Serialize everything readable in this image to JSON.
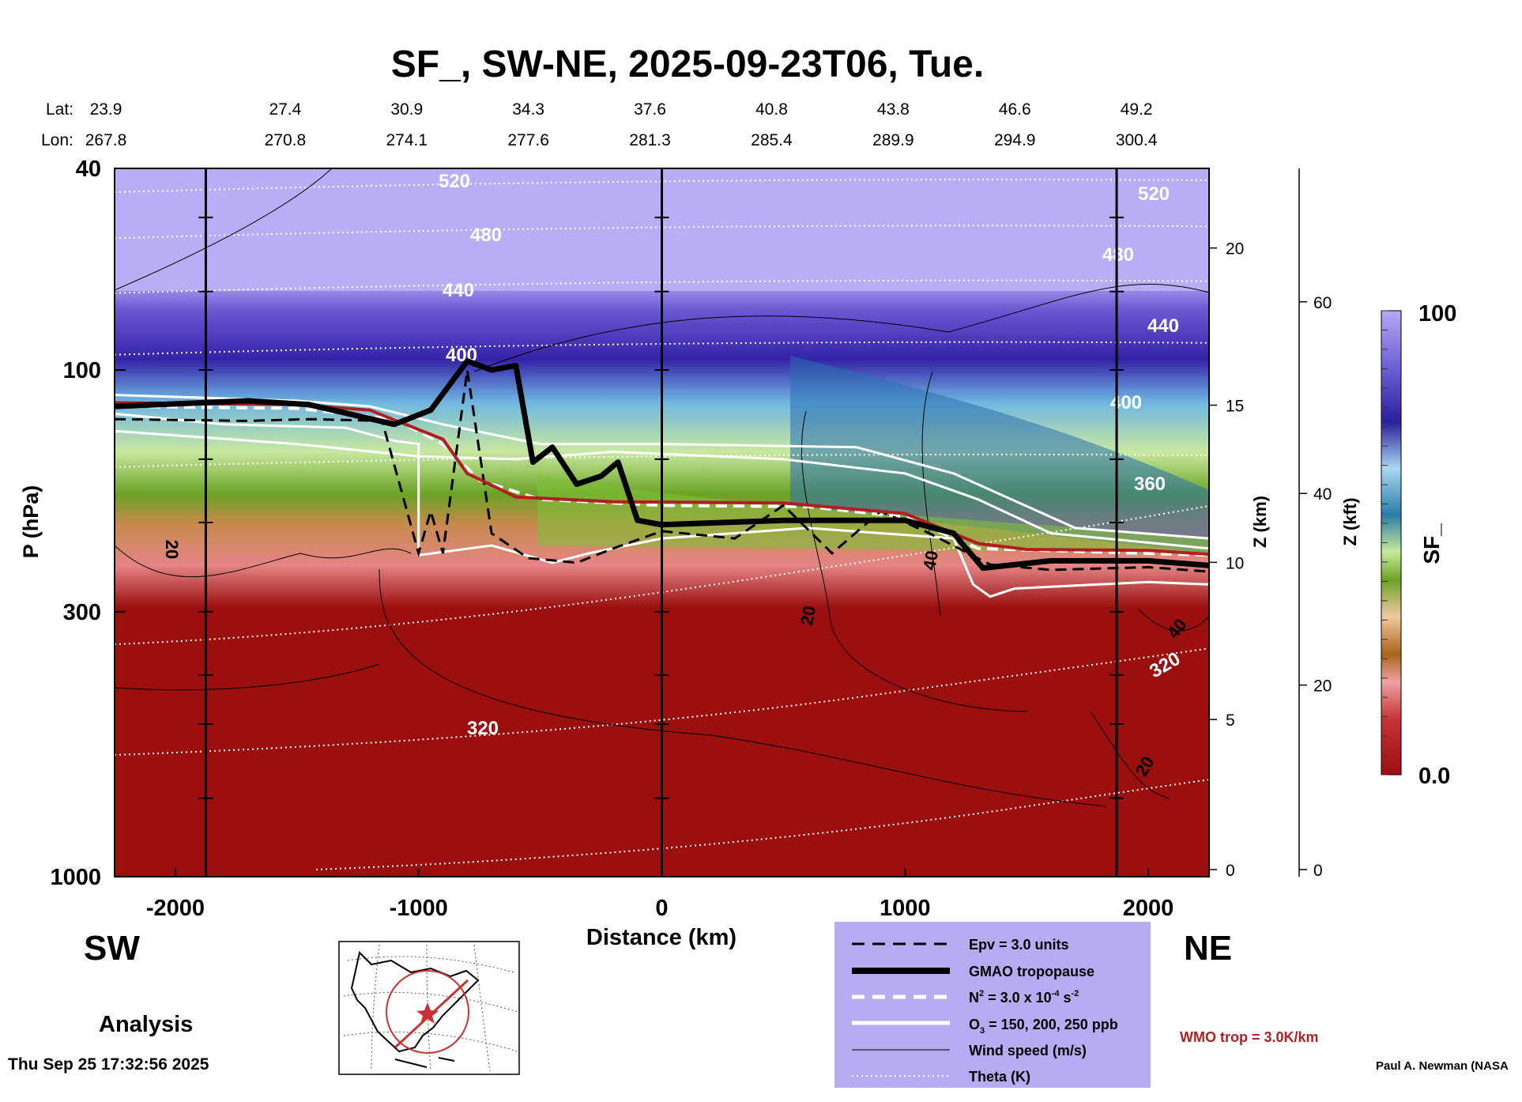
{
  "chart_data": {
    "type": "heatmap",
    "title": "SF_, SW-NE, 2025-09-23T06, Tue.",
    "xlabel": "Distance (km)",
    "ylabel": "P (hPa)",
    "y2label": "Z (km)",
    "y3label": "Z (kft)",
    "xlim": [
      -2250,
      2250
    ],
    "ylim": [
      1000,
      40
    ],
    "yscale": "log",
    "x_ticks": [
      -2000,
      -1000,
      0,
      1000,
      2000
    ],
    "x_tick_labels": [
      "-2000",
      "-1000",
      "0",
      "1000",
      "2000"
    ],
    "y_ticks": [
      40,
      100,
      300,
      1000
    ],
    "y_tick_labels": [
      "40",
      "100",
      "300",
      "1000"
    ],
    "z_km_ticks": [
      0,
      5,
      10,
      15,
      20
    ],
    "z_kft_ticks": [
      0,
      20,
      40,
      60
    ],
    "lat_label": "Lat:",
    "lon_label": "Lon:",
    "geo_axis": [
      {
        "x": -2250,
        "lat": "23.9",
        "lon": "267.8"
      },
      {
        "x": -1750,
        "lat": "27.4",
        "lon": "270.8"
      },
      {
        "x": -1250,
        "lat": "30.9",
        "lon": "274.1"
      },
      {
        "x": -750,
        "lat": "34.3",
        "lon": "277.6"
      },
      {
        "x": -250,
        "lat": "37.6",
        "lon": "281.3"
      },
      {
        "x": 250,
        "lat": "40.8",
        "lon": "285.4"
      },
      {
        "x": 750,
        "lat": "43.8",
        "lon": "289.9"
      },
      {
        "x": 1250,
        "lat": "46.6",
        "lon": "294.9"
      },
      {
        "x": 1750,
        "lat": "49.2",
        "lon": "300.4"
      }
    ],
    "vertical_lines_km": [
      -1875,
      0,
      1870
    ],
    "colorbar": {
      "label": "SF_",
      "min_label": "0.0",
      "max_label": "100"
    },
    "theta_labels": [
      "520",
      "480",
      "440",
      "400",
      "360",
      "320"
    ],
    "wind_labels": [
      "20",
      "40"
    ],
    "series": [
      {
        "name": "GMAO tropopause",
        "points": [
          [
            -2250,
            118
          ],
          [
            -1700,
            115
          ],
          [
            -1450,
            117
          ],
          [
            -1100,
            128
          ],
          [
            -950,
            120
          ],
          [
            -800,
            96
          ],
          [
            -700,
            100
          ],
          [
            -600,
            98
          ],
          [
            -530,
            152
          ],
          [
            -450,
            142
          ],
          [
            -350,
            168
          ],
          [
            -250,
            162
          ],
          [
            -180,
            152
          ],
          [
            -100,
            198
          ],
          [
            0,
            202
          ],
          [
            500,
            198
          ],
          [
            1000,
            198
          ],
          [
            1200,
            210
          ],
          [
            1320,
            246
          ],
          [
            1600,
            238
          ],
          [
            2000,
            238
          ],
          [
            2250,
            243
          ]
        ]
      },
      {
        "name": "WMO trop = 3.0K/km",
        "points": [
          [
            -2250,
            116
          ],
          [
            -1500,
            117
          ],
          [
            -1200,
            120
          ],
          [
            -900,
            137
          ],
          [
            -800,
            160
          ],
          [
            -600,
            178
          ],
          [
            -200,
            182
          ],
          [
            500,
            183
          ],
          [
            1000,
            192
          ],
          [
            1300,
            220
          ],
          [
            1500,
            226
          ],
          [
            2000,
            227
          ],
          [
            2250,
            231
          ]
        ]
      }
    ],
    "legend": {
      "position": "bottom-center",
      "entries": [
        {
          "label": "Epv = 3.0 units",
          "style": "dashed-black"
        },
        {
          "label": "GMAO tropopause",
          "style": "thick-black"
        },
        {
          "label_main": "N",
          "label_sup2": "2",
          "label_mid": " = 3.0 x 10",
          "label_sup": "-4",
          "label_end": " s",
          "label_sup3": "-2",
          "style": "dashed-white"
        },
        {
          "label_main": "O",
          "label_sub": "3",
          "label_end": " = 150, 200, 250 ppb",
          "style": "thick-white"
        },
        {
          "label": "Wind speed (m/s)",
          "style": "thin-black"
        },
        {
          "label": "Theta (K)",
          "style": "dotted-white"
        }
      ],
      "wmo_label": "WMO trop = 3.0K/km"
    },
    "colors": {
      "wmo": "#b02020",
      "legend_bg": "#b8abf2",
      "map_track": "#c83232"
    }
  },
  "labels": {
    "sw": "SW",
    "ne": "NE",
    "analysis": "Analysis",
    "timestamp": "Thu Sep 25 17:32:56 2025",
    "credit": "Paul A. Newman (NASA"
  }
}
